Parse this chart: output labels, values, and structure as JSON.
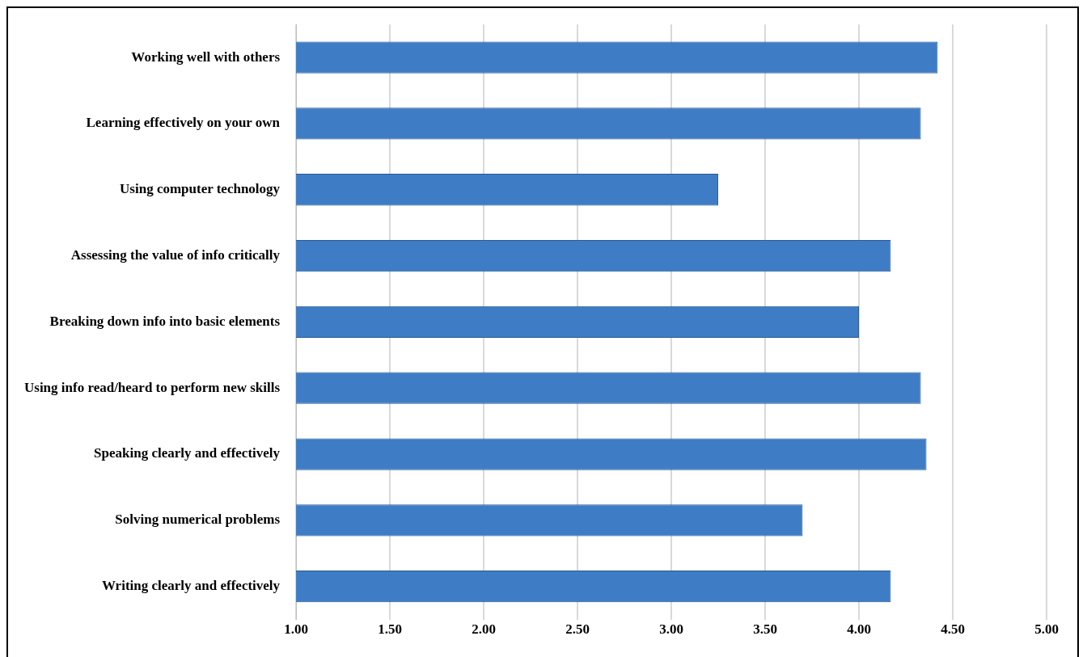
{
  "chart_data": {
    "type": "bar",
    "orientation": "horizontal",
    "categories": [
      "Working well with others",
      "Learning effectively on your own",
      "Using computer technology",
      "Assessing the value of info critically",
      "Breaking down info into basic elements",
      "Using info read/heard to perform new skills",
      "Speaking clearly and effectively",
      "Solving numerical problems",
      "Writing clearly and effectively"
    ],
    "values": [
      4.42,
      4.33,
      3.25,
      4.17,
      4.0,
      4.33,
      4.36,
      3.7,
      4.17
    ],
    "color": "#3e7cc6",
    "xlim": [
      1,
      5
    ],
    "xticks": [
      {
        "value": 1,
        "label": "1.00"
      },
      {
        "value": 1.5,
        "label": "1.50"
      },
      {
        "value": 2,
        "label": "2.00"
      },
      {
        "value": 2.5,
        "label": "2.50"
      },
      {
        "value": 3,
        "label": "3.00"
      },
      {
        "value": 3.5,
        "label": "3.50"
      },
      {
        "value": 4,
        "label": "4.00"
      },
      {
        "value": 4.5,
        "label": "4.50"
      },
      {
        "value": 5,
        "label": "5.00"
      }
    ],
    "grid": "x",
    "legend": false
  }
}
